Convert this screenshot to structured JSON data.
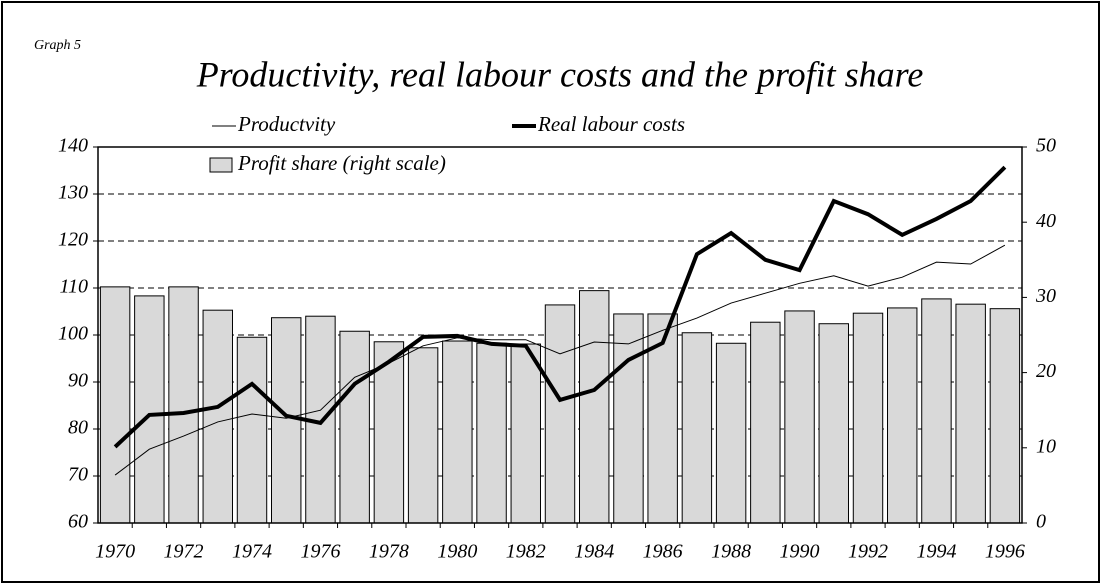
{
  "chart_data": {
    "type": "bar",
    "label": "Graph 5",
    "title": "Productivity, real labour costs and the profit share",
    "categories": [
      "1970",
      null,
      "1972",
      null,
      "1974",
      null,
      "1976",
      null,
      "1978",
      null,
      "1980",
      null,
      "1982",
      null,
      "1984",
      null,
      "1986",
      null,
      "1988",
      null,
      "1990",
      null,
      "1992",
      null,
      "1994",
      null,
      "1996"
    ],
    "series": [
      {
        "name": "Profit share (right scale)",
        "type": "bar",
        "axis": "y2",
        "color": "#d9d9d9",
        "values": [
          31.4,
          30.2,
          31.4,
          28.3,
          24.7,
          27.3,
          27.5,
          25.5,
          24.1,
          23.3,
          24.2,
          23.9,
          23.8,
          29.0,
          30.9,
          27.8,
          27.8,
          25.3,
          23.9,
          26.7,
          28.2,
          26.5,
          27.9,
          28.6,
          29.8,
          29.1,
          28.5
        ]
      },
      {
        "name": "Productvity",
        "type": "line",
        "color": "#000000",
        "width": 1,
        "values": [
          70.2,
          75.7,
          78.5,
          81.5,
          83.2,
          82.3,
          84.0,
          91.0,
          94.0,
          97.7,
          99.4,
          99.0,
          99.0,
          96.0,
          98.5,
          98.1,
          101.0,
          103.6,
          106.8,
          108.9,
          111.0,
          112.6,
          110.4,
          112.3,
          115.5,
          115.1,
          119.1
        ]
      },
      {
        "name": "Real labour costs",
        "type": "line",
        "color": "#000000",
        "width": 4,
        "values": [
          76.2,
          83.0,
          83.4,
          84.7,
          89.6,
          82.8,
          81.3,
          89.6,
          94.3,
          99.6,
          99.8,
          98.1,
          97.7,
          86.2,
          88.3,
          94.7,
          98.3,
          117.2,
          121.7,
          116.0,
          113.8,
          128.5,
          125.7,
          121.3,
          124.7,
          128.5,
          135.7
        ]
      }
    ],
    "ylim": [
      60,
      140
    ],
    "yticks": [
      60,
      70,
      80,
      90,
      100,
      110,
      120,
      130,
      140
    ],
    "y2lim": [
      0,
      50
    ],
    "y2ticks": [
      0,
      10,
      20,
      30,
      40,
      50
    ],
    "grid": true
  }
}
